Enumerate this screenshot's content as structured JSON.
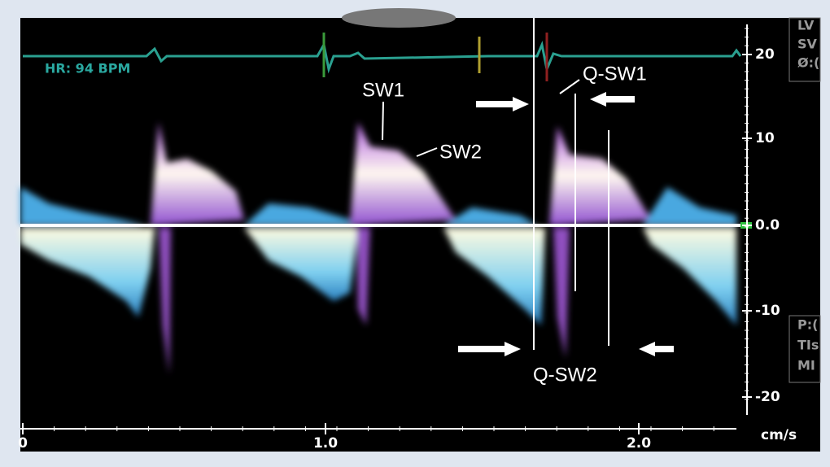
{
  "display": {
    "heart_rate": "HR: 94 BPM",
    "annotations": [
      "SW1",
      "SW2",
      "Q-SW1",
      "Q-SW2"
    ],
    "velocity_ticks": [
      "20",
      "10",
      "0.0",
      "-10",
      "-20"
    ],
    "time_ticks": [
      "0",
      "1.0",
      "2.0"
    ],
    "velocity_unit": "cm/s",
    "side_panel_top": [
      "LV",
      "SV",
      "Ø:("
    ],
    "side_panel_bottom": [
      "P:(",
      "TIs",
      "MI"
    ]
  }
}
